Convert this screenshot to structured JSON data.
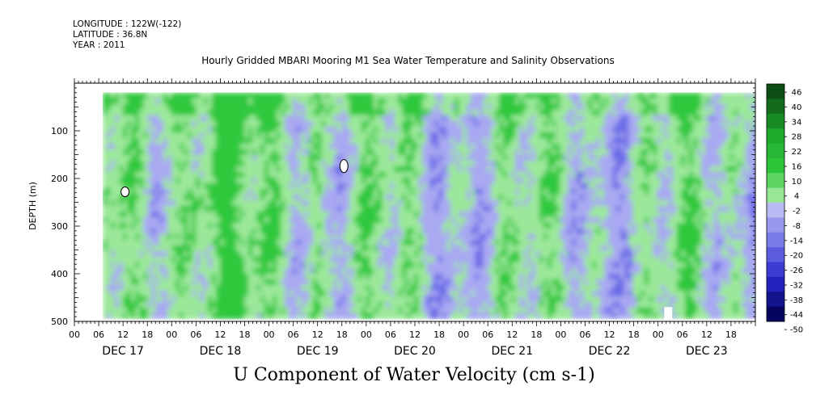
{
  "header": {
    "longitude": "LONGITUDE : 122W(-122)",
    "latitude": "LATITUDE : 36.8N",
    "year": "YEAR : 2011"
  },
  "chart_data": {
    "type": "heatmap",
    "title": "Hourly Gridded MBARI Mooring M1 Sea Water Temperature and Salinity Observations",
    "bottom_title": "U Component of Water Velocity (cm s-1)",
    "ylabel": "DEPTH (m)",
    "ylim": [
      500,
      0
    ],
    "y_ticks": [
      100,
      200,
      300,
      400,
      500
    ],
    "y_tick_labels": [
      "100",
      "200",
      "300",
      "400",
      "500"
    ],
    "x_range_hours": [
      0,
      168
    ],
    "hour_labels": [
      "00",
      "06",
      "12",
      "18",
      "00",
      "06",
      "12",
      "18",
      "00",
      "06",
      "12",
      "18",
      "00",
      "06",
      "12",
      "18",
      "00",
      "06",
      "12",
      "18",
      "00",
      "06",
      "12",
      "18",
      "00",
      "06",
      "12",
      "18"
    ],
    "day_labels": [
      "DEC 17",
      "DEC 18",
      "DEC 19",
      "DEC 20",
      "DEC 21",
      "DEC 22",
      "DEC 23"
    ],
    "colorbar_levels": [
      "46",
      "40",
      "34",
      "28",
      "22",
      "16",
      "10",
      "4",
      "-2",
      "-8",
      "-14",
      "-20",
      "-26",
      "-32",
      "-38",
      "-44",
      "-50"
    ],
    "data_extent_hours": [
      7,
      168
    ],
    "data_extent_depth_m": [
      20,
      485
    ],
    "colors": {
      "strong_pos": "#0b4d12",
      "pos": "#2fc83c",
      "weak_pos": "#9be89a",
      "weak_neg": "#a9a9f2",
      "neg": "#6c6ce8",
      "strong_neg": "#05055e"
    }
  }
}
